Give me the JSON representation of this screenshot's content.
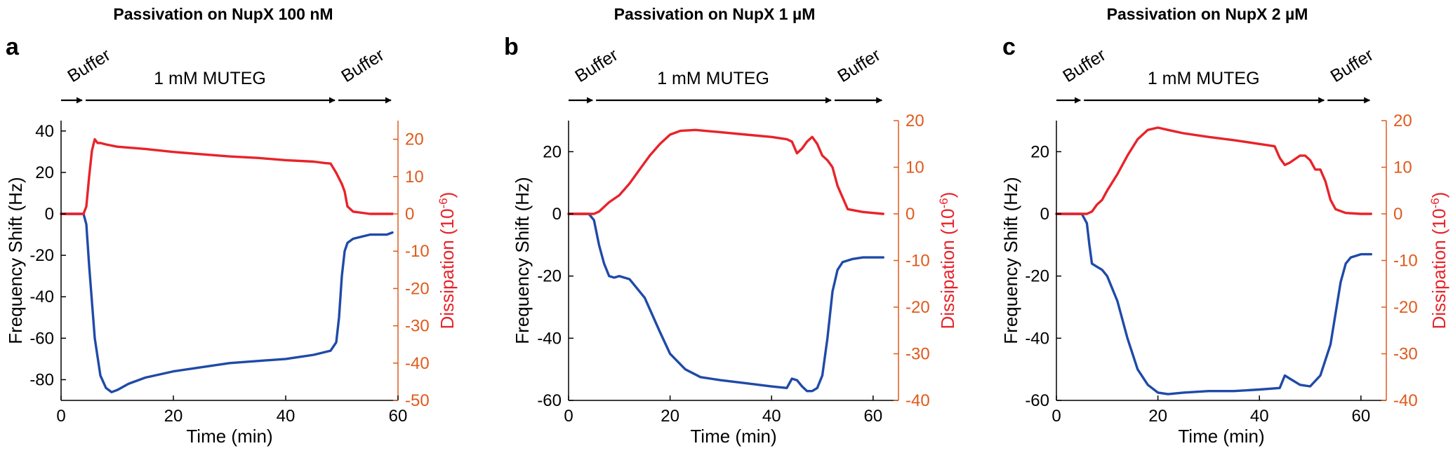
{
  "colors": {
    "frequency": "#1f4aa8",
    "dissipation": "#e8232a",
    "right_axis": "#e05a1c",
    "axis": "#000000"
  },
  "chart_data": [
    {
      "type": "line",
      "panel_letter": "a",
      "title": "Passivation on NupX 100 nM",
      "phase_labels": {
        "buffer_start": "Buffer",
        "muteg": "1 mM MUTEG",
        "buffer_end": "Buffer"
      },
      "phase_breaks": [
        0,
        4,
        49,
        59
      ],
      "xlabel": "Time (min)",
      "ylabel_left": "Frequency Shift (Hz)",
      "ylabel_right_prefix": "Dissipation (10",
      "ylabel_right_sup": "-6",
      "ylabel_right_suffix": ")",
      "xlim": [
        0,
        60
      ],
      "ylim_left": [
        -90,
        45
      ],
      "ylim_right": [
        -50,
        25
      ],
      "xticks": [
        0,
        20,
        40,
        60
      ],
      "yticks_left": [
        -80,
        -60,
        -40,
        -20,
        0,
        20,
        40
      ],
      "yticks_right": [
        -50,
        -40,
        -30,
        -20,
        -10,
        0,
        10,
        20
      ],
      "series": [
        {
          "axis": "left",
          "color_key": "frequency",
          "x": [
            0,
            4,
            4.5,
            5,
            6,
            7,
            8,
            9,
            10,
            12,
            15,
            20,
            25,
            30,
            35,
            40,
            45,
            48,
            49,
            49.5,
            50,
            50.5,
            51,
            52,
            55,
            58,
            59
          ],
          "y": [
            0,
            0,
            -5,
            -25,
            -60,
            -78,
            -84,
            -86,
            -85,
            -82,
            -79,
            -76,
            -74,
            -72,
            -71,
            -70,
            -68,
            -66,
            -62,
            -50,
            -30,
            -18,
            -14,
            -12,
            -10,
            -10,
            -9
          ]
        },
        {
          "axis": "right",
          "color_key": "dissipation",
          "x": [
            0,
            4,
            4.5,
            5,
            5.5,
            6,
            6.5,
            7,
            8,
            10,
            15,
            20,
            25,
            30,
            35,
            40,
            45,
            47,
            48,
            49,
            50,
            50.5,
            51,
            52,
            55,
            58,
            59
          ],
          "y": [
            0,
            0,
            2,
            10,
            17,
            20,
            19,
            19,
            18.6,
            18,
            17.4,
            16.6,
            16,
            15.4,
            15,
            14.4,
            14,
            13.6,
            13.5,
            11,
            8,
            6,
            2,
            0.6,
            0,
            0,
            0
          ]
        }
      ]
    },
    {
      "type": "line",
      "panel_letter": "b",
      "title": "Passivation on NupX 1 µM",
      "phase_labels": {
        "buffer_start": "Buffer",
        "muteg": "1 mM MUTEG",
        "buffer_end": "Buffer"
      },
      "phase_breaks": [
        0,
        5,
        52,
        62
      ],
      "xlabel": "Time (min)",
      "ylabel_left": "Frequency Shift (Hz)",
      "ylabel_right_prefix": "Dissipation (10",
      "ylabel_right_sup": "-6",
      "ylabel_right_suffix": ")",
      "xlim": [
        0,
        65
      ],
      "ylim_left": [
        -60,
        30
      ],
      "ylim_right": [
        -40,
        20
      ],
      "xticks": [
        0,
        20,
        40,
        60
      ],
      "yticks_left": [
        -60,
        -40,
        -20,
        0,
        20
      ],
      "yticks_right": [
        -40,
        -30,
        -20,
        -10,
        0,
        10,
        20
      ],
      "series": [
        {
          "axis": "left",
          "color_key": "frequency",
          "x": [
            0,
            4,
            5,
            6,
            7,
            8,
            9,
            10,
            12,
            15,
            18,
            20,
            23,
            26,
            30,
            35,
            40,
            43,
            44,
            45,
            46,
            47,
            48,
            49,
            50,
            51,
            52,
            53,
            54,
            56,
            58,
            60,
            62
          ],
          "y": [
            0,
            0,
            -2,
            -10,
            -16,
            -20,
            -20.5,
            -20,
            -21,
            -27,
            -38,
            -45,
            -50,
            -52.5,
            -53.5,
            -54.5,
            -55.5,
            -56,
            -53,
            -53.5,
            -55.5,
            -57,
            -57,
            -56,
            -52,
            -40,
            -25,
            -18,
            -15.5,
            -14.5,
            -14,
            -14,
            -14
          ]
        },
        {
          "axis": "right",
          "color_key": "dissipation",
          "x": [
            0,
            5,
            6,
            7,
            8,
            10,
            12,
            14,
            16,
            18,
            20,
            22,
            25,
            30,
            35,
            40,
            43,
            44,
            45,
            46,
            47,
            48,
            49,
            50,
            51,
            52,
            53,
            55,
            58,
            60,
            62
          ],
          "y": [
            0,
            0,
            0.5,
            1.5,
            2.5,
            4,
            6.5,
            9.5,
            12.5,
            15,
            17,
            17.8,
            18,
            17.5,
            17,
            16.5,
            16,
            15.5,
            13,
            14,
            15.5,
            16.5,
            15,
            12.5,
            11.5,
            10,
            6,
            1,
            0.4,
            0.2,
            0
          ]
        }
      ]
    },
    {
      "type": "line",
      "panel_letter": "c",
      "title": "Passivation on NupX 2 µM",
      "phase_labels": {
        "buffer_start": "Buffer",
        "muteg": "1 mM MUTEG",
        "buffer_end": "Buffer"
      },
      "phase_breaks": [
        0,
        5,
        53,
        62
      ],
      "xlabel": "Time (min)",
      "ylabel_left": "Frequency Shift (Hz)",
      "ylabel_right_prefix": "Dissipation (10",
      "ylabel_right_sup": "-6",
      "ylabel_right_suffix": ")",
      "xlim": [
        0,
        65
      ],
      "ylim_left": [
        -60,
        30
      ],
      "ylim_right": [
        -40,
        20
      ],
      "xticks": [
        0,
        20,
        40,
        60
      ],
      "yticks_left": [
        -60,
        -40,
        -20,
        0,
        20
      ],
      "yticks_right": [
        -40,
        -30,
        -20,
        -10,
        0,
        10,
        20
      ],
      "series": [
        {
          "axis": "left",
          "color_key": "frequency",
          "x": [
            0,
            5,
            6,
            6.5,
            7,
            8,
            9,
            10,
            12,
            14,
            16,
            18,
            20,
            22,
            25,
            30,
            35,
            40,
            44,
            45,
            46,
            48,
            50,
            52,
            54,
            55,
            56,
            57,
            58,
            60,
            62
          ],
          "y": [
            0,
            0,
            -3,
            -10,
            -16,
            -17,
            -18,
            -20,
            -28,
            -40,
            -50,
            -55,
            -57.5,
            -58,
            -57.5,
            -57,
            -57,
            -56.5,
            -56,
            -52,
            -53,
            -55,
            -55.5,
            -52,
            -42,
            -32,
            -22,
            -16,
            -14,
            -13,
            -13
          ]
        },
        {
          "axis": "right",
          "color_key": "dissipation",
          "x": [
            0,
            6,
            7,
            8,
            9,
            10,
            12,
            14,
            16,
            18,
            20,
            22,
            25,
            30,
            35,
            40,
            43,
            44,
            45,
            46,
            48,
            49,
            50,
            51,
            52,
            53,
            54,
            55,
            57,
            60,
            62
          ],
          "y": [
            0,
            0,
            0.5,
            2,
            3,
            5,
            8.5,
            12.5,
            16,
            18,
            18.5,
            18,
            17.3,
            16.5,
            15.8,
            15,
            14.5,
            12,
            10.5,
            11,
            12.5,
            12.5,
            11.5,
            9.5,
            9.5,
            7,
            3,
            1,
            0.2,
            0,
            0
          ]
        }
      ]
    }
  ]
}
